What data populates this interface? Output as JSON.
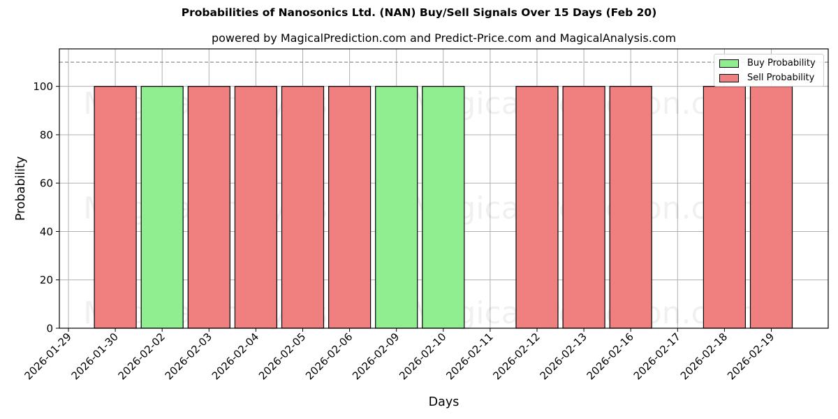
{
  "header": {
    "title": "Probabilities of Nanosonics Ltd. (NAN) Buy/Sell Signals Over 15 Days (Feb 20)",
    "subtitle": "powered by MagicalPrediction.com and Predict-Price.com and MagicalAnalysis.com"
  },
  "colors": {
    "buy": "#90ee90",
    "sell": "#f08080",
    "grid": "#b0b0b0",
    "threshold_line": "#808080"
  },
  "legend": {
    "items": [
      {
        "label": "Buy Probability",
        "color": "#90ee90"
      },
      {
        "label": "Sell Probability",
        "color": "#f08080"
      }
    ]
  },
  "watermarks": [
    "MagicalAnalysis.com",
    "MagicalPrediction.com"
  ],
  "chart_data": {
    "type": "bar",
    "title": "Probabilities of Nanosonics Ltd. (NAN) Buy/Sell Signals Over 15 Days (Feb 20)",
    "subtitle": "powered by MagicalPrediction.com and Predict-Price.com and MagicalAnalysis.com",
    "xlabel": "Days",
    "ylabel": "Probability",
    "ylim": [
      0,
      115.5
    ],
    "yticks": [
      0,
      20,
      40,
      60,
      80,
      100
    ],
    "grid": true,
    "legend_position": "upper right",
    "threshold_line": {
      "y": 110,
      "style": "dashed"
    },
    "categories": [
      "2026-01-29",
      "2026-01-30",
      "2026-02-02",
      "2026-02-03",
      "2026-02-04",
      "2026-02-05",
      "2026-02-06",
      "2026-02-09",
      "2026-02-10",
      "2026-02-11",
      "2026-02-12",
      "2026-02-13",
      "2026-02-16",
      "2026-02-17",
      "2026-02-18",
      "2026-02-19"
    ],
    "series": [
      {
        "name": "Buy Probability",
        "values": [
          0,
          0,
          100,
          0,
          0,
          0,
          0,
          100,
          100,
          0,
          0,
          0,
          0,
          0,
          0,
          0
        ]
      },
      {
        "name": "Sell Probability",
        "values": [
          0,
          100,
          0,
          100,
          100,
          100,
          100,
          0,
          0,
          0,
          100,
          100,
          100,
          0,
          100,
          100
        ]
      }
    ]
  }
}
